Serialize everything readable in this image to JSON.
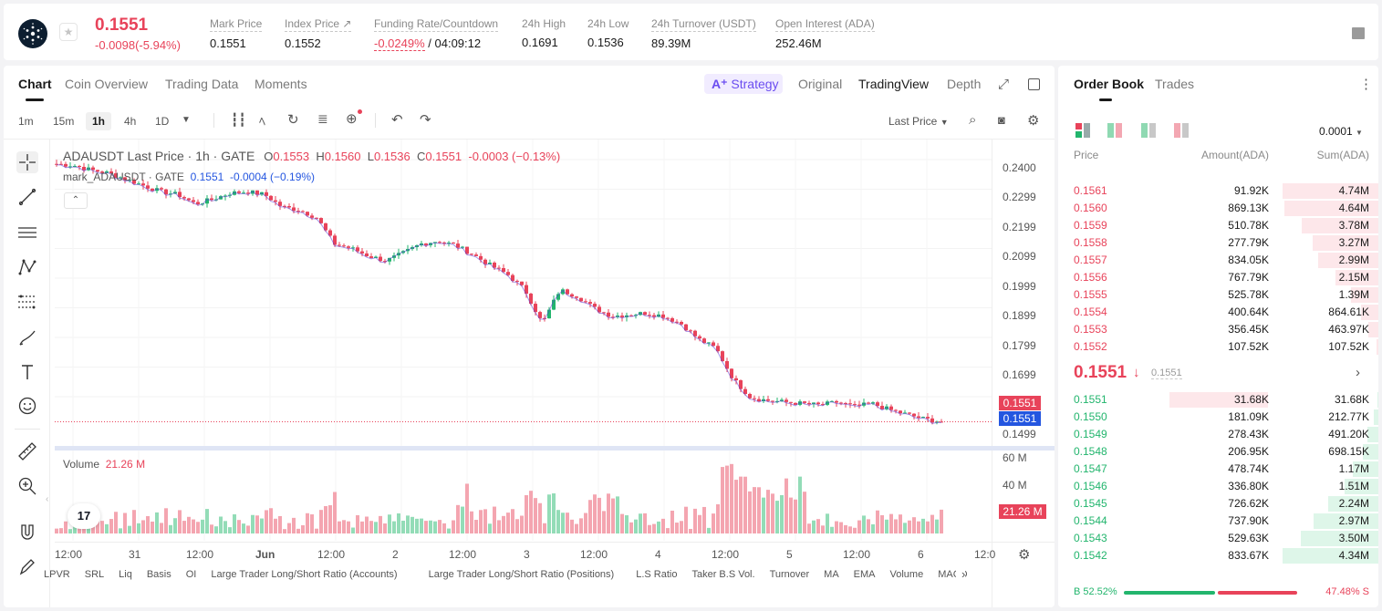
{
  "header": {
    "last_price": "0.1551",
    "price_change": "-0.0098(-5.94%)",
    "stats": [
      {
        "label": "Mark Price",
        "value": "0.1551"
      },
      {
        "label": "Index Price ↗",
        "value": "0.1552"
      },
      {
        "label": "Funding Rate/Countdown",
        "value_rate": "-0.0249%",
        "value_countdown": "/ 04:09:12"
      },
      {
        "label": "24h High",
        "value": "0.1691"
      },
      {
        "label": "24h Low",
        "value": "0.1536"
      },
      {
        "label": "24h Turnover (USDT)",
        "value": "89.39M"
      },
      {
        "label": "Open Interest (ADA)",
        "value": "252.46M"
      }
    ]
  },
  "chart_tabs": {
    "chart": "Chart",
    "coin_overview": "Coin Overview",
    "trading_data": "Trading Data",
    "moments": "Moments"
  },
  "view_tabs": {
    "strategy": "Strategy",
    "original": "Original",
    "tradingview": "TradingView",
    "depth": "Depth"
  },
  "timeframes": [
    "1m",
    "15m",
    "1h",
    "4h",
    "1D"
  ],
  "last_price_select": "Last Price",
  "legend": {
    "symbol": "ADAUSDT Last Price · 1h · GATE",
    "o_label": "O",
    "o": "0.1553",
    "h_label": "H",
    "h": "0.1560",
    "l_label": "L",
    "l": "0.1536",
    "c_label": "C",
    "c": "0.1551",
    "change": "-0.0003 (−0.13%)",
    "mark_label": "mark_ADAUSDT · GATE",
    "mark_value": "0.1551",
    "mark_change": "-0.0004 (−0.19%)"
  },
  "price_axis": [
    "0.2400",
    "0.2299",
    "0.2199",
    "0.2099",
    "0.1999",
    "0.1899",
    "0.1799",
    "0.1699",
    "0.1499"
  ],
  "price_tags": {
    "last": "0.1551",
    "mark": "0.1551"
  },
  "volume_axis": [
    "60 M",
    "40 M"
  ],
  "volume_legend": {
    "label": "Volume",
    "value": "21.26 M",
    "tag": "21.26 M"
  },
  "time_axis": [
    "12:00",
    "31",
    "12:00",
    "Jun",
    "12:00",
    "2",
    "12:00",
    "3",
    "12:00",
    "4",
    "12:00",
    "5",
    "12:00",
    "6",
    "12:0"
  ],
  "indicators": [
    "LPVR",
    "SRL",
    "Liq",
    "Basis",
    "OI",
    "Large Trader Long/Short Ratio (Accounts)",
    "Large Trader Long/Short Ratio (Positions)",
    "L.S Ratio",
    "Taker B.S Vol.",
    "Turnover",
    "MA",
    "EMA",
    "Volume",
    "MACD"
  ],
  "colors": {
    "up": "#22b56d",
    "down": "#e8435a",
    "accent": "#6b4df0",
    "mark_line": "#5a38d6",
    "mark_tag": "#2456e0"
  },
  "order_book": {
    "tabs": {
      "order_book": "Order Book",
      "trades": "Trades"
    },
    "precision": "0.0001",
    "headers": {
      "price": "Price",
      "amount": "Amount(ADA)",
      "sum": "Sum(ADA)"
    },
    "asks": [
      {
        "price": "0.1561",
        "amount": "91.92K",
        "sum": "4.74M",
        "depth": 1.0
      },
      {
        "price": "0.1560",
        "amount": "869.13K",
        "sum": "4.64M",
        "depth": 0.98
      },
      {
        "price": "0.1559",
        "amount": "510.78K",
        "sum": "3.78M",
        "depth": 0.8
      },
      {
        "price": "0.1558",
        "amount": "277.79K",
        "sum": "3.27M",
        "depth": 0.69
      },
      {
        "price": "0.1557",
        "amount": "834.05K",
        "sum": "2.99M",
        "depth": 0.63
      },
      {
        "price": "0.1556",
        "amount": "767.79K",
        "sum": "2.15M",
        "depth": 0.45
      },
      {
        "price": "0.1555",
        "amount": "525.78K",
        "sum": "1.39M",
        "depth": 0.29
      },
      {
        "price": "0.1554",
        "amount": "400.64K",
        "sum": "864.61K",
        "depth": 0.18
      },
      {
        "price": "0.1553",
        "amount": "356.45K",
        "sum": "463.97K",
        "depth": 0.1
      },
      {
        "price": "0.1552",
        "amount": "107.52K",
        "sum": "107.52K",
        "depth": 0.02
      }
    ],
    "mid_price": "0.1551",
    "mid_arrow": "↓",
    "mid_mark": "0.1551",
    "bids": [
      {
        "price": "0.1551",
        "amount": "31.68K",
        "sum": "31.68K",
        "depth": 0.01
      },
      {
        "price": "0.1550",
        "amount": "181.09K",
        "sum": "212.77K",
        "depth": 0.05
      },
      {
        "price": "0.1549",
        "amount": "278.43K",
        "sum": "491.20K",
        "depth": 0.11
      },
      {
        "price": "0.1548",
        "amount": "206.95K",
        "sum": "698.15K",
        "depth": 0.16
      },
      {
        "price": "0.1547",
        "amount": "478.74K",
        "sum": "1.17M",
        "depth": 0.27
      },
      {
        "price": "0.1546",
        "amount": "336.80K",
        "sum": "1.51M",
        "depth": 0.35
      },
      {
        "price": "0.1545",
        "amount": "726.62K",
        "sum": "2.24M",
        "depth": 0.52
      },
      {
        "price": "0.1544",
        "amount": "737.90K",
        "sum": "2.97M",
        "depth": 0.68
      },
      {
        "price": "0.1543",
        "amount": "529.63K",
        "sum": "3.50M",
        "depth": 0.81
      },
      {
        "price": "0.1542",
        "amount": "833.67K",
        "sum": "4.34M",
        "depth": 1.0
      }
    ],
    "ratio": {
      "b_label": "B 52.52%",
      "s_label": "47.48% S",
      "buy": 0.5252
    }
  },
  "chart_data": {
    "type": "candlestick",
    "price_range": [
      0.149,
      0.241
    ],
    "close_path": [
      0.239,
      0.2385,
      0.237,
      0.236,
      0.234,
      0.232,
      0.23,
      0.229,
      0.226,
      0.2275,
      0.2295,
      0.23,
      0.229,
      0.225,
      0.224,
      0.2215,
      0.213,
      0.2115,
      0.209,
      0.2075,
      0.21,
      0.213,
      0.214,
      0.2125,
      0.2095,
      0.206,
      0.203,
      0.198,
      0.187,
      0.198,
      0.196,
      0.192,
      0.1895,
      0.19,
      0.1905,
      0.1895,
      0.187,
      0.182,
      0.179,
      0.169,
      0.163,
      0.162,
      0.1615,
      0.161,
      0.1605,
      0.1615,
      0.16,
      0.161,
      0.159,
      0.1575,
      0.156,
      0.1551
    ],
    "volume_scale_max": 70,
    "last_volume": 21.26
  }
}
